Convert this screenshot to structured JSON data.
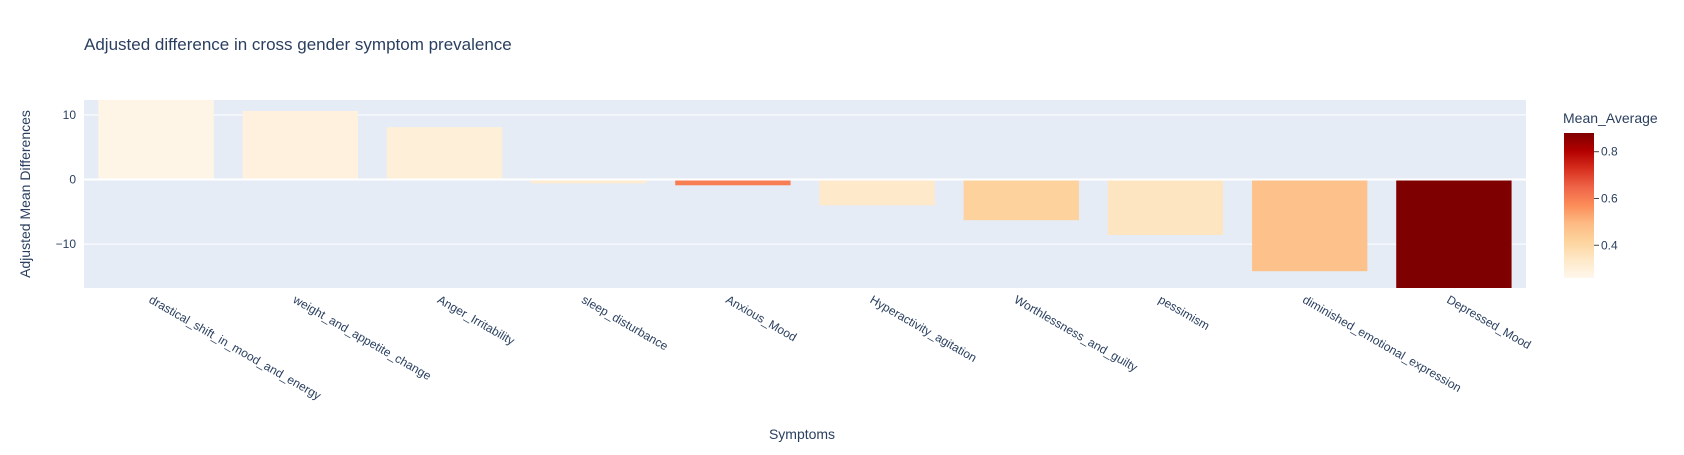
{
  "chart_data": {
    "type": "bar",
    "title": "Adjusted difference in cross gender symptom prevalence",
    "xlabel": "Symptoms",
    "ylabel": "Adjusted Mean Differences",
    "categories": [
      "drastical_shift_in_mood_and_energy",
      "weight_and_appetite_change",
      "Anger_Irritability",
      "sleep_disturbance",
      "Anxious_Mood",
      "Hyperactivity_agitation",
      "Worthlessness_and_guilty",
      "pessimism",
      "diminished_emotional_expression",
      "Depressed_Mood"
    ],
    "values": [
      12.5,
      10.6,
      8.1,
      -0.6,
      -0.9,
      -4.0,
      -6.3,
      -8.6,
      -14.2,
      -17.0
    ],
    "color_values": [
      0.27,
      0.29,
      0.3,
      0.32,
      0.6,
      0.33,
      0.42,
      0.35,
      0.47,
      0.88
    ],
    "ylim": [
      -16.8,
      12.3
    ],
    "yticks": [
      -10,
      0,
      10
    ],
    "ytick_labels": [
      "−10",
      "0",
      "10"
    ],
    "colorbar": {
      "title": "Mean_Average",
      "range": [
        0.26,
        0.88
      ],
      "ticks": [
        0.4,
        0.6,
        0.8
      ],
      "tick_labels": [
        "0.4",
        "0.6",
        "0.8"
      ],
      "colorscale": [
        "#fff7ec",
        "#fee8c8",
        "#fdd49e",
        "#fdbb84",
        "#fc8d59",
        "#ef6548",
        "#d7301f",
        "#b30000",
        "#7f0000"
      ]
    },
    "grid": true,
    "legend": "colorbar-right"
  }
}
